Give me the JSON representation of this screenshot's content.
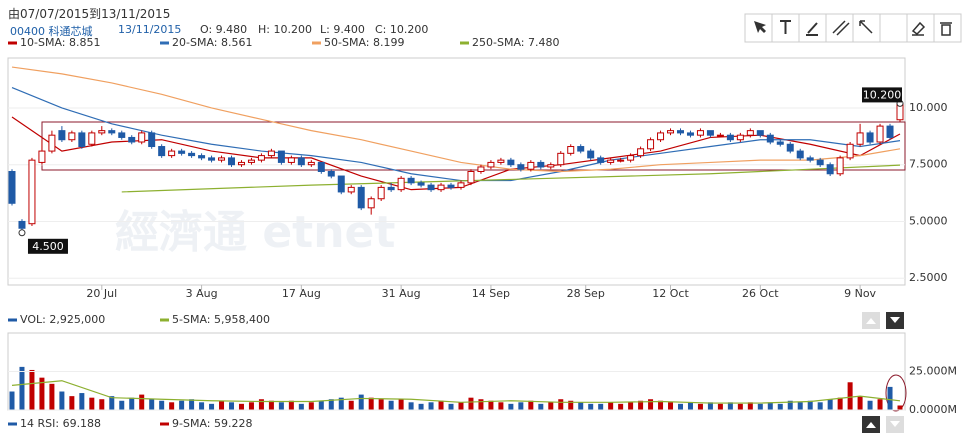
{
  "header": {
    "range": "由07/07/2015到13/11/2015",
    "stock": "00400 科通芯城",
    "date": "13/11/2015",
    "open": "O: 9.480",
    "high": "H: 10.200",
    "low": "L: 9.400",
    "close": "C: 10.200",
    "watermark": "經濟通 etnet"
  },
  "rsi_legend": [
    {
      "name": "14 RSI: 69.188",
      "color": "#1f5aa6"
    },
    {
      "name": "9-SMA: 59.228",
      "color": "#c00000"
    }
  ],
  "chart_data": [
    {
      "type": "candlestick",
      "up_color": "#c00000",
      "down_color": "#1f5aa6",
      "grid": true,
      "ylim": [
        2.2,
        12.2
      ],
      "yticks": [
        {
          "value": 2.5,
          "label": "2.5000"
        },
        {
          "value": 5,
          "label": "5.0000"
        },
        {
          "value": 7.5,
          "label": "7.5000"
        },
        {
          "value": 10,
          "label": "10.000"
        }
      ],
      "xlim": [
        0,
        89
      ],
      "xticks": [
        {
          "value": 9,
          "label": "20 Jul"
        },
        {
          "value": 19,
          "label": "3 Aug"
        },
        {
          "value": 29,
          "label": "17 Aug"
        },
        {
          "value": 39,
          "label": "31 Aug"
        },
        {
          "value": 48,
          "label": "14 Sep"
        },
        {
          "value": 57.5,
          "label": "28 Sep"
        },
        {
          "value": 66,
          "label": "12 Oct"
        },
        {
          "value": 75,
          "label": "26 Oct"
        },
        {
          "value": 85,
          "label": "9 Nov"
        }
      ],
      "open": [
        7.2,
        5.0,
        4.9,
        7.6,
        8.1,
        9.0,
        8.6,
        8.9,
        8.4,
        8.9,
        9.0,
        8.9,
        8.7,
        8.5,
        8.9,
        8.3,
        7.9,
        8.1,
        8.0,
        7.9,
        7.8,
        7.7,
        7.8,
        7.5,
        7.6,
        7.7,
        7.9,
        8.1,
        7.6,
        7.8,
        7.5,
        7.6,
        7.2,
        7.0,
        6.3,
        6.5,
        5.6,
        6.0,
        6.5,
        6.4,
        6.9,
        6.7,
        6.6,
        6.4,
        6.6,
        6.5,
        6.7,
        7.2,
        7.4,
        7.6,
        7.7,
        7.5,
        7.3,
        7.6,
        7.4,
        7.5,
        8.0,
        8.3,
        8.1,
        7.8,
        7.6,
        7.7,
        7.7,
        7.9,
        8.2,
        8.6,
        8.9,
        9.0,
        8.9,
        8.8,
        9.0,
        8.8,
        8.8,
        8.6,
        8.8,
        9.0,
        8.8,
        8.5,
        8.4,
        8.1,
        7.8,
        7.7,
        7.5,
        7.1,
        7.8,
        8.4,
        8.9,
        8.5,
        9.2,
        9.48
      ],
      "high": [
        7.3,
        5.1,
        7.8,
        8.6,
        9.0,
        9.2,
        9.0,
        9.0,
        9.0,
        9.2,
        9.1,
        9.0,
        8.8,
        9.0,
        9.0,
        8.4,
        8.2,
        8.2,
        8.1,
        8.0,
        7.9,
        7.9,
        7.9,
        7.7,
        7.8,
        8.0,
        8.2,
        8.1,
        7.9,
        7.9,
        7.7,
        7.6,
        7.3,
        7.0,
        6.6,
        6.6,
        6.1,
        6.6,
        6.7,
        7.0,
        7.0,
        6.8,
        6.7,
        6.7,
        6.7,
        6.8,
        7.3,
        7.5,
        7.7,
        7.8,
        7.8,
        7.6,
        7.7,
        7.7,
        7.6,
        8.1,
        8.4,
        8.4,
        8.2,
        7.9,
        7.8,
        7.8,
        8.0,
        8.3,
        8.7,
        9.0,
        9.1,
        9.1,
        9.0,
        9.1,
        9.0,
        8.9,
        8.9,
        8.9,
        9.1,
        9.0,
        8.9,
        8.6,
        8.5,
        8.2,
        7.9,
        7.8,
        7.6,
        7.9,
        8.5,
        9.3,
        9.0,
        9.3,
        9.3,
        10.2
      ],
      "low": [
        5.7,
        4.5,
        4.8,
        7.5,
        8.0,
        8.5,
        8.5,
        8.2,
        8.3,
        8.8,
        8.8,
        8.6,
        8.4,
        8.4,
        8.2,
        7.8,
        7.8,
        7.9,
        7.8,
        7.7,
        7.6,
        7.6,
        7.4,
        7.4,
        7.5,
        7.6,
        7.8,
        7.5,
        7.5,
        7.4,
        7.4,
        7.1,
        6.9,
        6.2,
        6.2,
        5.5,
        5.3,
        5.9,
        6.3,
        6.3,
        6.6,
        6.5,
        6.3,
        6.3,
        6.4,
        6.4,
        6.6,
        7.1,
        7.3,
        7.5,
        7.4,
        7.2,
        7.2,
        7.3,
        7.3,
        7.4,
        7.9,
        8.0,
        7.7,
        7.5,
        7.5,
        7.6,
        7.6,
        7.8,
        8.1,
        8.5,
        8.8,
        8.8,
        8.7,
        8.7,
        8.7,
        8.7,
        8.5,
        8.5,
        8.7,
        8.7,
        8.4,
        8.3,
        8.0,
        7.7,
        7.6,
        7.4,
        7.0,
        7.0,
        7.7,
        8.3,
        8.4,
        8.4,
        8.6,
        9.4
      ],
      "close": [
        5.8,
        4.7,
        7.7,
        8.1,
        8.8,
        8.6,
        8.9,
        8.3,
        8.9,
        9.0,
        8.9,
        8.7,
        8.5,
        8.9,
        8.3,
        7.9,
        8.1,
        8.0,
        7.9,
        7.8,
        7.7,
        7.8,
        7.5,
        7.6,
        7.7,
        7.9,
        8.1,
        7.6,
        7.8,
        7.5,
        7.6,
        7.2,
        7.0,
        6.3,
        6.5,
        5.6,
        6.0,
        6.5,
        6.4,
        6.9,
        6.7,
        6.6,
        6.4,
        6.6,
        6.5,
        6.7,
        7.2,
        7.4,
        7.6,
        7.7,
        7.5,
        7.3,
        7.6,
        7.4,
        7.5,
        8.0,
        8.3,
        8.1,
        7.8,
        7.6,
        7.7,
        7.7,
        7.9,
        8.2,
        8.6,
        8.9,
        9.0,
        8.9,
        8.8,
        9.0,
        8.8,
        8.8,
        8.6,
        8.8,
        9.0,
        8.8,
        8.5,
        8.4,
        8.1,
        7.8,
        7.7,
        7.5,
        7.1,
        7.8,
        8.4,
        8.9,
        8.5,
        9.2,
        8.7,
        10.2
      ],
      "series": [
        {
          "name": "10-SMA: 8.851",
          "color": "#c00000",
          "x": [
            0,
            5,
            10,
            15,
            20,
            25,
            30,
            35,
            40,
            45,
            50,
            55,
            60,
            65,
            70,
            75,
            80,
            85,
            89
          ],
          "values": [
            9.6,
            8.1,
            8.5,
            8.6,
            8.1,
            7.8,
            7.8,
            7.0,
            6.4,
            6.5,
            7.3,
            7.5,
            7.8,
            8.1,
            8.7,
            8.8,
            8.4,
            7.9,
            8.851
          ]
        },
        {
          "name": "20-SMA: 8.561",
          "color": "#2f6db5",
          "x": [
            0,
            5,
            10,
            15,
            20,
            25,
            30,
            35,
            40,
            45,
            50,
            55,
            60,
            65,
            70,
            75,
            80,
            85,
            89
          ],
          "values": [
            10.9,
            10.0,
            9.3,
            8.8,
            8.4,
            8.1,
            7.9,
            7.6,
            7.1,
            6.8,
            6.8,
            7.2,
            7.7,
            8.0,
            8.3,
            8.6,
            8.6,
            8.3,
            8.561
          ]
        },
        {
          "name": "50-SMA: 8.199",
          "color": "#f0a060",
          "x": [
            0,
            5,
            10,
            15,
            20,
            25,
            30,
            35,
            40,
            45,
            50,
            55,
            60,
            65,
            70,
            75,
            80,
            85,
            89
          ],
          "values": [
            11.8,
            11.5,
            11.1,
            10.6,
            10.0,
            9.5,
            9.0,
            8.6,
            8.1,
            7.6,
            7.3,
            7.2,
            7.3,
            7.5,
            7.6,
            7.7,
            7.7,
            7.9,
            8.199
          ]
        },
        {
          "name": "250-SMA: 7.480",
          "color": "#8db030",
          "x": [
            11,
            30,
            50,
            70,
            89
          ],
          "values": [
            6.3,
            6.6,
            6.85,
            7.1,
            7.48
          ]
        }
      ],
      "annotations": [
        {
          "x": 1,
          "value": 4.5,
          "label": "4.500"
        },
        {
          "x": 89,
          "value": 10.2,
          "label": "10.200"
        }
      ]
    },
    {
      "type": "bar",
      "ylim": [
        0,
        50000000
      ],
      "yticks": [
        {
          "value": 0,
          "label": "0.0000M"
        },
        {
          "value": 25000000,
          "label": "25.000M"
        }
      ],
      "series": [
        {
          "name": "VOL: 2,925,000",
          "color": "#1f5aa6",
          "values": [
            12000000,
            28000000,
            26000000,
            21000000,
            17000000,
            12000000,
            9000000,
            11000000,
            8000000,
            7000000,
            9000000,
            6000000,
            8000000,
            10000000,
            7000000,
            6000000,
            5000000,
            6000000,
            7000000,
            5000000,
            4000000,
            6000000,
            5000000,
            4000000,
            5000000,
            7000000,
            6000000,
            5000000,
            6000000,
            4000000,
            5000000,
            6000000,
            7000000,
            8000000,
            6000000,
            10000000,
            8000000,
            7000000,
            6000000,
            7000000,
            5000000,
            4000000,
            5000000,
            6000000,
            4000000,
            5000000,
            8000000,
            7000000,
            6000000,
            5000000,
            4000000,
            5000000,
            6000000,
            4000000,
            5000000,
            7000000,
            6000000,
            5000000,
            4000000,
            4000000,
            5000000,
            4000000,
            5000000,
            6000000,
            7000000,
            6000000,
            5000000,
            4000000,
            5000000,
            4000000,
            5000000,
            4000000,
            5000000,
            4000000,
            5000000,
            4000000,
            5000000,
            4000000,
            6000000,
            5000000,
            6000000,
            5000000,
            7000000,
            8000000,
            18000000,
            9000000,
            6000000,
            7000000,
            15000000,
            2925000
          ]
        },
        {
          "name": "5-SMA: 5,958,400",
          "color": "#8db030",
          "x": [
            0,
            5,
            10,
            15,
            20,
            25,
            30,
            35,
            40,
            45,
            50,
            55,
            60,
            65,
            70,
            75,
            80,
            85,
            89
          ],
          "values": [
            16000000,
            19000000,
            8000000,
            7000000,
            6000000,
            5500000,
            5500000,
            7500000,
            7000000,
            5000000,
            6000000,
            5000000,
            5000000,
            5500000,
            4500000,
            4500000,
            5500000,
            9000000,
            5958400
          ]
        }
      ]
    }
  ]
}
